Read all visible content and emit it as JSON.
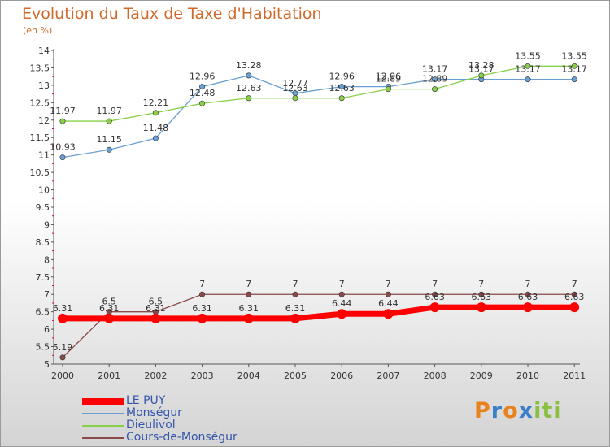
{
  "chart_data": {
    "type": "line",
    "title": "Evolution du Taux de Taxe d'Habitation",
    "subtitle": "(en %)",
    "x": [
      "2000",
      "2001",
      "2002",
      "2003",
      "2004",
      "2005",
      "2006",
      "2007",
      "2008",
      "2009",
      "2010",
      "2011"
    ],
    "yticks": [
      "5",
      "5.5",
      "6",
      "6.5",
      "7",
      "7.5",
      "8",
      "8.5",
      "9",
      "9.5",
      "10",
      "10.5",
      "11",
      "11.5",
      "12",
      "12.5",
      "13",
      "13.5",
      "14"
    ],
    "ylim": [
      5,
      14
    ],
    "grid": false,
    "legend_position": "bottom-left",
    "series": [
      {
        "name": "LE PUY",
        "color": "#ff0000",
        "values": [
          6.31,
          6.31,
          6.31,
          6.31,
          6.31,
          6.31,
          6.44,
          6.44,
          6.63,
          6.63,
          6.63,
          6.63
        ],
        "labels": [
          "6.31",
          "6.31",
          "6.31",
          "6.31",
          "6.31",
          "6.31",
          "6.44",
          "6.44",
          "6.63",
          "6.63",
          "6.63",
          "6.63"
        ]
      },
      {
        "name": "Monségur",
        "color": "#6a9fd4",
        "values": [
          10.93,
          11.15,
          11.48,
          12.96,
          13.28,
          12.77,
          12.96,
          12.96,
          13.17,
          13.17,
          13.17,
          13.17
        ],
        "labels": [
          "10.93",
          "11.15",
          "11.48",
          "12.96",
          "13.28",
          "12.77",
          "12.96",
          "12.96",
          "13.17",
          "13.17",
          "13.17",
          "13.17"
        ]
      },
      {
        "name": "Dieulivol",
        "color": "#88d048",
        "values": [
          11.97,
          11.97,
          12.21,
          12.48,
          12.63,
          12.63,
          12.63,
          12.89,
          12.89,
          13.28,
          13.55,
          13.55
        ],
        "labels": [
          "11.97",
          "11.97",
          "12.21",
          "12.48",
          "12.63",
          "12.63",
          "12.63",
          "12.89",
          "12.89",
          "13.28",
          "13.55",
          "13.55"
        ]
      },
      {
        "name": "Cours-de-Monségur",
        "color": "#8b4a4a",
        "values": [
          5.19,
          6.5,
          6.5,
          7,
          7,
          7,
          7,
          7,
          7,
          7,
          7,
          7
        ],
        "labels": [
          "5.19",
          "6.5",
          "6.5",
          "7",
          "7",
          "7",
          "7",
          "7",
          "7",
          "7",
          "7",
          "7"
        ]
      }
    ]
  },
  "logo": {
    "letters": [
      "P",
      "r",
      "o",
      "x",
      "i",
      "t",
      "i"
    ],
    "colors": [
      "#e8821e",
      "#3a7fc8",
      "#e8821e",
      "#3a7fc8",
      "#88c040",
      "#88c040",
      "#88c040"
    ]
  }
}
